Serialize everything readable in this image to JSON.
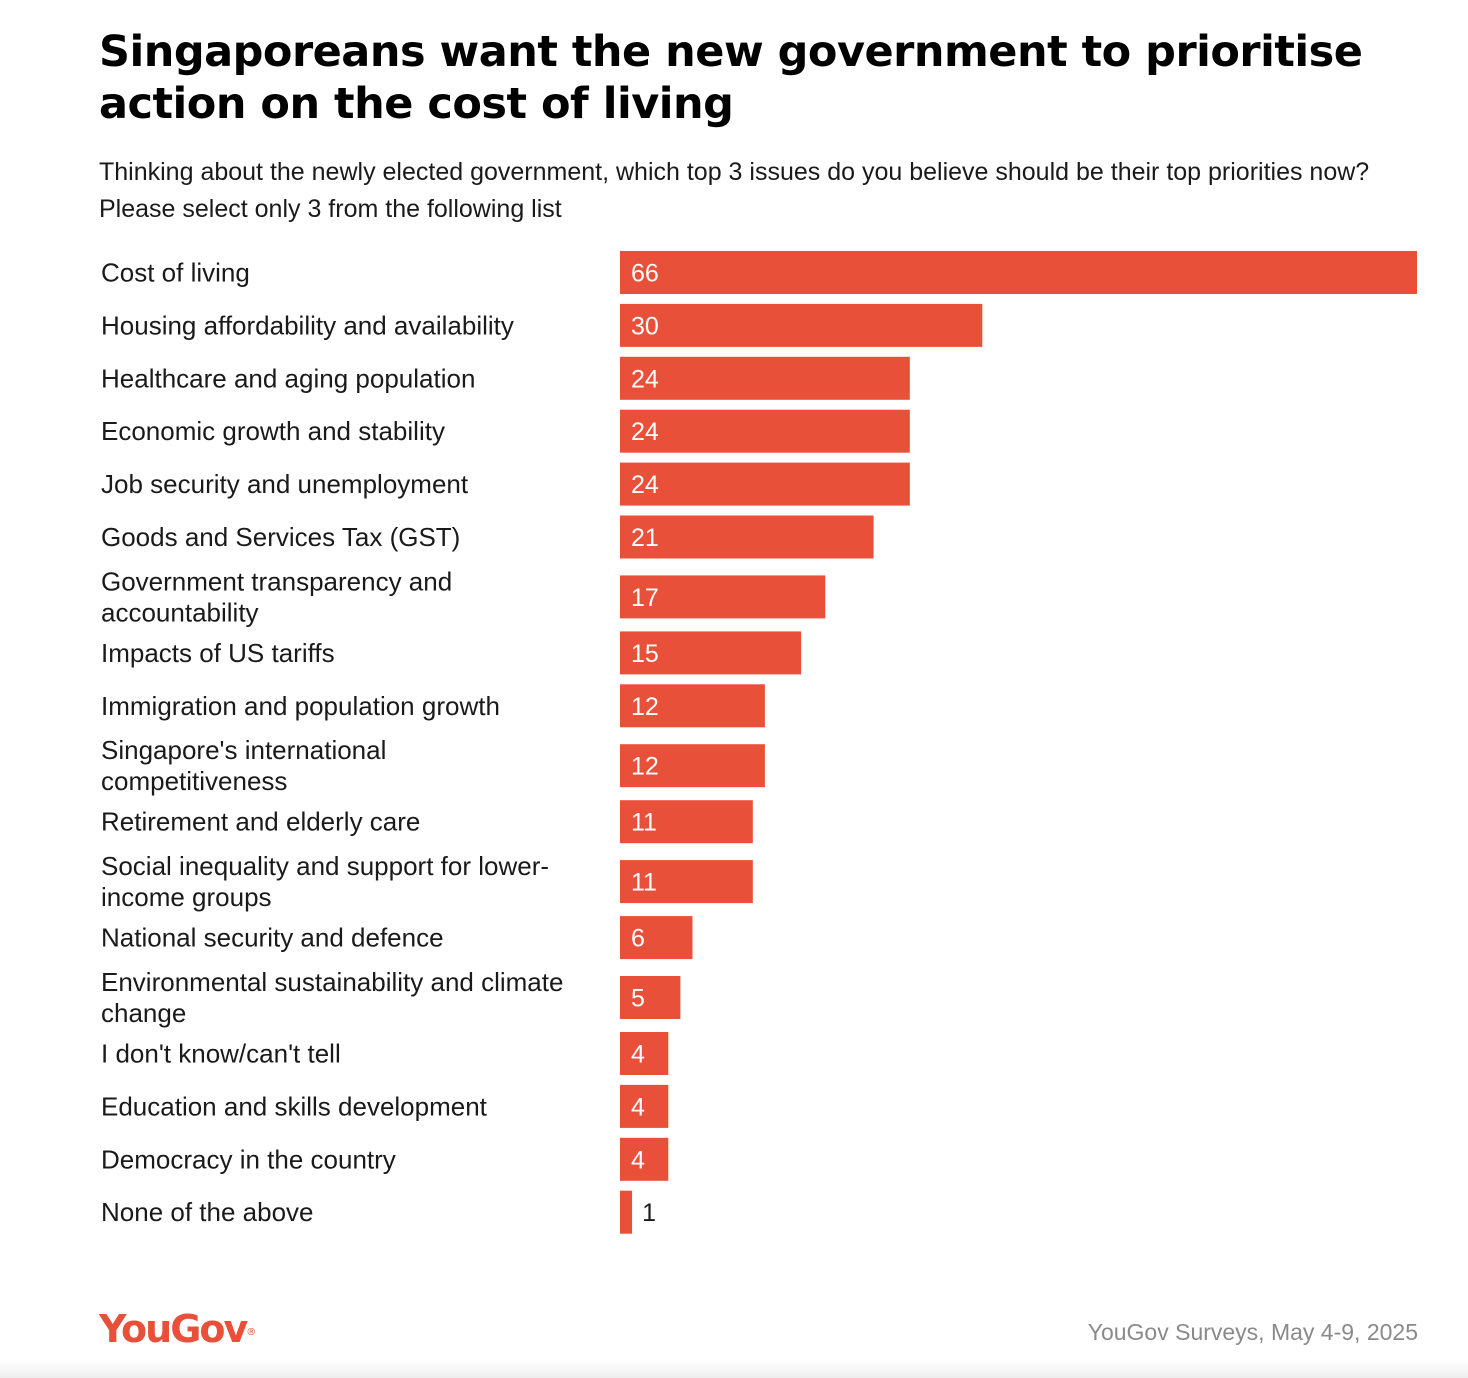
{
  "header": {
    "title": "Singaporeans want the new government to prioritise action on the cost of living",
    "subtitle": "Thinking about the newly elected government, which top 3 issues do you believe should be their top priorities now? Please select only 3 from the following list"
  },
  "footer": {
    "logo_text": "YouGov",
    "logo_mark": "®",
    "source": "YouGov Surveys, May 4-9, 2025"
  },
  "colors": {
    "bar": "#e8503a",
    "brand": "#e8503a",
    "source_text": "#8a8a8a"
  },
  "chart_data": {
    "type": "bar",
    "orientation": "horizontal",
    "title": "Singaporeans want the new government to prioritise action on the cost of living",
    "subtitle": "Thinking about the newly elected government, which top 3 issues do you believe should be their top priorities now? Please select only 3 from the following list",
    "categories": [
      [
        "Cost of living"
      ],
      [
        "Housing affordability and availability"
      ],
      [
        "Healthcare and aging population"
      ],
      [
        "Economic growth and stability"
      ],
      [
        "Job security and unemployment"
      ],
      [
        "Goods and Services Tax (GST)"
      ],
      [
        "Government transparency and",
        "accountability"
      ],
      [
        "Impacts of US tariffs"
      ],
      [
        "Immigration and population growth"
      ],
      [
        "Singapore's international",
        "competitiveness"
      ],
      [
        "Retirement and elderly care"
      ],
      [
        "Social inequality and support for lower-",
        "income groups"
      ],
      [
        "National security and defence"
      ],
      [
        "Environmental sustainability and climate",
        "change"
      ],
      [
        "I don't know/can't tell"
      ],
      [
        "Education and skills development"
      ],
      [
        "Democracy in the country"
      ],
      [
        "None of the above"
      ]
    ],
    "values": [
      66,
      30,
      24,
      24,
      24,
      21,
      17,
      15,
      12,
      12,
      11,
      11,
      6,
      5,
      4,
      4,
      4,
      1
    ],
    "xlim": [
      0,
      66
    ],
    "grid": false,
    "legend": "none"
  }
}
